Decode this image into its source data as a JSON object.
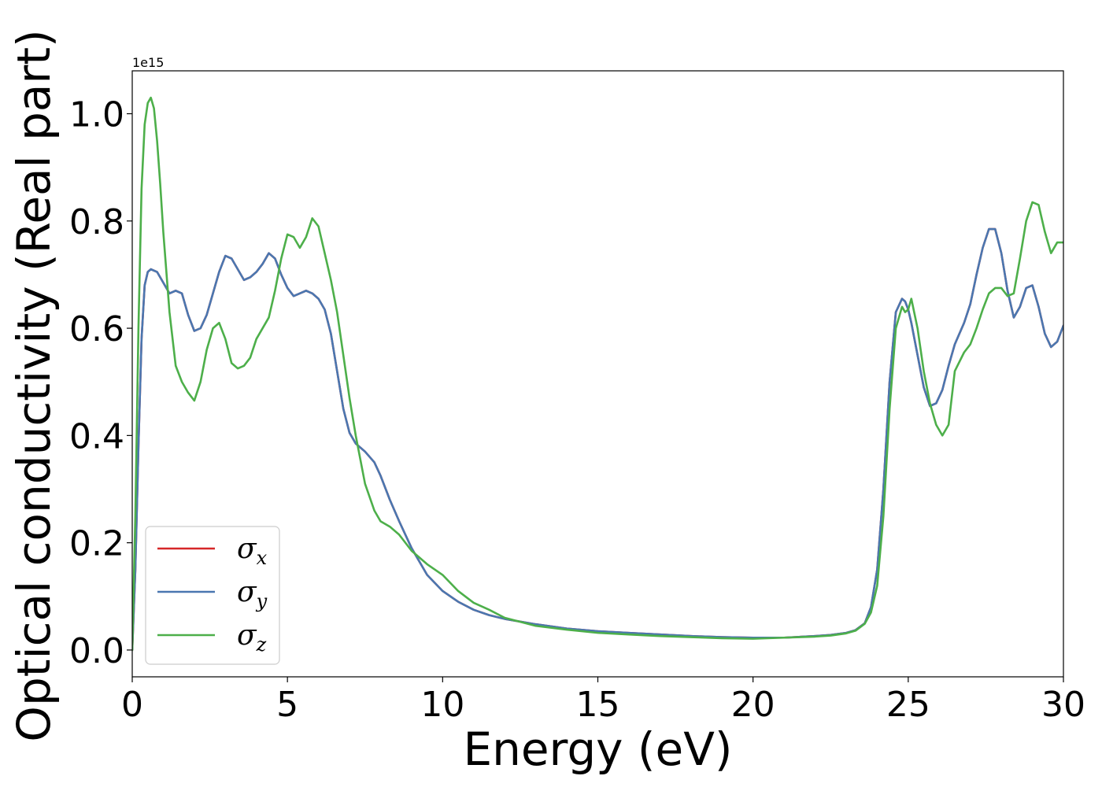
{
  "chart_data": {
    "type": "line",
    "title": "",
    "xlabel": "Energy (eV)",
    "ylabel": "Optical conductivity (Real part)",
    "y_offset_label": "1e15",
    "xlim": [
      0,
      30
    ],
    "ylim": [
      -0.05,
      1.08
    ],
    "x_ticks": [
      0,
      5,
      10,
      15,
      20,
      25,
      30
    ],
    "x_tick_labels": [
      "0",
      "5",
      "10",
      "15",
      "20",
      "25",
      "30"
    ],
    "y_ticks": [
      0.0,
      0.2,
      0.4,
      0.6,
      0.8,
      1.0
    ],
    "y_tick_labels": [
      "0.0",
      "0.2",
      "0.4",
      "0.6",
      "0.8",
      "1.0"
    ],
    "grid": false,
    "legend_position": "lower-left",
    "series": [
      {
        "name": "σx",
        "symbol": "σ",
        "subscript": "x",
        "color": "#d62728",
        "x": [
          0,
          0.1,
          0.2,
          0.3,
          0.4,
          0.5,
          0.6,
          0.8,
          1.0,
          1.2,
          1.4,
          1.6,
          1.8,
          2.0,
          2.2,
          2.4,
          2.6,
          2.8,
          3.0,
          3.2,
          3.4,
          3.6,
          3.8,
          4.0,
          4.2,
          4.4,
          4.6,
          4.8,
          5.0,
          5.2,
          5.4,
          5.6,
          5.8,
          6.0,
          6.2,
          6.4,
          6.6,
          6.8,
          7.0,
          7.2,
          7.5,
          7.8,
          8.0,
          8.3,
          8.6,
          9.0,
          9.5,
          10.0,
          10.5,
          11.0,
          11.5,
          12.0,
          13.0,
          14.0,
          15.0,
          16.0,
          17.0,
          18.0,
          19.0,
          20.0,
          21.0,
          22.0,
          22.5,
          23.0,
          23.3,
          23.6,
          23.8,
          24.0,
          24.2,
          24.4,
          24.6,
          24.8,
          24.9,
          25.0,
          25.1,
          25.3,
          25.5,
          25.7,
          25.9,
          26.1,
          26.3,
          26.5,
          26.8,
          27.0,
          27.2,
          27.4,
          27.6,
          27.8,
          28.0,
          28.2,
          28.4,
          28.6,
          28.8,
          29.0,
          29.2,
          29.4,
          29.6,
          29.8,
          30.0
        ],
        "y": [
          0.0,
          0.15,
          0.38,
          0.58,
          0.68,
          0.705,
          0.71,
          0.705,
          0.685,
          0.665,
          0.67,
          0.665,
          0.625,
          0.595,
          0.6,
          0.625,
          0.665,
          0.705,
          0.735,
          0.73,
          0.71,
          0.69,
          0.695,
          0.705,
          0.72,
          0.74,
          0.73,
          0.7,
          0.675,
          0.66,
          0.665,
          0.67,
          0.665,
          0.655,
          0.635,
          0.59,
          0.52,
          0.45,
          0.405,
          0.385,
          0.37,
          0.35,
          0.325,
          0.28,
          0.24,
          0.19,
          0.14,
          0.11,
          0.09,
          0.075,
          0.065,
          0.058,
          0.048,
          0.04,
          0.035,
          0.032,
          0.029,
          0.026,
          0.024,
          0.023,
          0.023,
          0.026,
          0.028,
          0.032,
          0.037,
          0.05,
          0.08,
          0.15,
          0.3,
          0.5,
          0.63,
          0.655,
          0.65,
          0.635,
          0.61,
          0.55,
          0.49,
          0.455,
          0.46,
          0.485,
          0.53,
          0.57,
          0.61,
          0.645,
          0.7,
          0.75,
          0.785,
          0.785,
          0.74,
          0.67,
          0.62,
          0.64,
          0.675,
          0.68,
          0.64,
          0.59,
          0.565,
          0.575,
          0.605
        ]
      },
      {
        "name": "σy",
        "symbol": "σ",
        "subscript": "y",
        "color": "#4a77b0",
        "x": [
          0,
          0.1,
          0.2,
          0.3,
          0.4,
          0.5,
          0.6,
          0.8,
          1.0,
          1.2,
          1.4,
          1.6,
          1.8,
          2.0,
          2.2,
          2.4,
          2.6,
          2.8,
          3.0,
          3.2,
          3.4,
          3.6,
          3.8,
          4.0,
          4.2,
          4.4,
          4.6,
          4.8,
          5.0,
          5.2,
          5.4,
          5.6,
          5.8,
          6.0,
          6.2,
          6.4,
          6.6,
          6.8,
          7.0,
          7.2,
          7.5,
          7.8,
          8.0,
          8.3,
          8.6,
          9.0,
          9.5,
          10.0,
          10.5,
          11.0,
          11.5,
          12.0,
          13.0,
          14.0,
          15.0,
          16.0,
          17.0,
          18.0,
          19.0,
          20.0,
          21.0,
          22.0,
          22.5,
          23.0,
          23.3,
          23.6,
          23.8,
          24.0,
          24.2,
          24.4,
          24.6,
          24.8,
          24.9,
          25.0,
          25.1,
          25.3,
          25.5,
          25.7,
          25.9,
          26.1,
          26.3,
          26.5,
          26.8,
          27.0,
          27.2,
          27.4,
          27.6,
          27.8,
          28.0,
          28.2,
          28.4,
          28.6,
          28.8,
          29.0,
          29.2,
          29.4,
          29.6,
          29.8,
          30.0
        ],
        "y": [
          0.0,
          0.15,
          0.38,
          0.58,
          0.68,
          0.705,
          0.71,
          0.705,
          0.685,
          0.665,
          0.67,
          0.665,
          0.625,
          0.595,
          0.6,
          0.625,
          0.665,
          0.705,
          0.735,
          0.73,
          0.71,
          0.69,
          0.695,
          0.705,
          0.72,
          0.74,
          0.73,
          0.7,
          0.675,
          0.66,
          0.665,
          0.67,
          0.665,
          0.655,
          0.635,
          0.59,
          0.52,
          0.45,
          0.405,
          0.385,
          0.37,
          0.35,
          0.325,
          0.28,
          0.24,
          0.19,
          0.14,
          0.11,
          0.09,
          0.075,
          0.065,
          0.058,
          0.048,
          0.04,
          0.035,
          0.032,
          0.029,
          0.026,
          0.024,
          0.023,
          0.023,
          0.026,
          0.028,
          0.032,
          0.037,
          0.05,
          0.08,
          0.15,
          0.3,
          0.5,
          0.63,
          0.655,
          0.65,
          0.635,
          0.61,
          0.55,
          0.49,
          0.455,
          0.46,
          0.485,
          0.53,
          0.57,
          0.61,
          0.645,
          0.7,
          0.75,
          0.785,
          0.785,
          0.74,
          0.67,
          0.62,
          0.64,
          0.675,
          0.68,
          0.64,
          0.59,
          0.565,
          0.575,
          0.605
        ]
      },
      {
        "name": "σz",
        "symbol": "σ",
        "subscript": "z",
        "color": "#4daf4a",
        "x": [
          0,
          0.1,
          0.2,
          0.3,
          0.4,
          0.5,
          0.6,
          0.7,
          0.8,
          0.9,
          1.0,
          1.2,
          1.4,
          1.6,
          1.8,
          2.0,
          2.2,
          2.4,
          2.6,
          2.8,
          3.0,
          3.2,
          3.4,
          3.6,
          3.8,
          4.0,
          4.2,
          4.4,
          4.6,
          4.8,
          5.0,
          5.2,
          5.4,
          5.6,
          5.8,
          6.0,
          6.2,
          6.4,
          6.6,
          6.8,
          7.0,
          7.2,
          7.5,
          7.8,
          8.0,
          8.3,
          8.6,
          9.0,
          9.5,
          10.0,
          10.5,
          11.0,
          11.5,
          12.0,
          13.0,
          14.0,
          15.0,
          16.0,
          17.0,
          18.0,
          19.0,
          20.0,
          21.0,
          22.0,
          22.5,
          23.0,
          23.3,
          23.6,
          23.8,
          24.0,
          24.2,
          24.4,
          24.6,
          24.8,
          24.9,
          25.0,
          25.1,
          25.3,
          25.5,
          25.7,
          25.9,
          26.1,
          26.3,
          26.5,
          26.8,
          27.0,
          27.2,
          27.4,
          27.6,
          27.8,
          28.0,
          28.2,
          28.4,
          28.6,
          28.8,
          29.0,
          29.2,
          29.4,
          29.6,
          29.8,
          30.0
        ],
        "y": [
          0.0,
          0.25,
          0.6,
          0.86,
          0.98,
          1.02,
          1.03,
          1.01,
          0.95,
          0.87,
          0.78,
          0.63,
          0.53,
          0.5,
          0.48,
          0.465,
          0.5,
          0.56,
          0.6,
          0.61,
          0.58,
          0.535,
          0.525,
          0.53,
          0.545,
          0.58,
          0.6,
          0.62,
          0.67,
          0.73,
          0.775,
          0.77,
          0.75,
          0.77,
          0.805,
          0.79,
          0.74,
          0.69,
          0.63,
          0.55,
          0.47,
          0.4,
          0.31,
          0.26,
          0.24,
          0.23,
          0.215,
          0.185,
          0.16,
          0.14,
          0.11,
          0.088,
          0.075,
          0.06,
          0.045,
          0.038,
          0.032,
          0.029,
          0.026,
          0.024,
          0.022,
          0.021,
          0.023,
          0.025,
          0.027,
          0.031,
          0.036,
          0.049,
          0.07,
          0.12,
          0.25,
          0.45,
          0.6,
          0.64,
          0.63,
          0.635,
          0.655,
          0.6,
          0.52,
          0.46,
          0.42,
          0.4,
          0.42,
          0.52,
          0.555,
          0.57,
          0.6,
          0.635,
          0.665,
          0.675,
          0.675,
          0.66,
          0.665,
          0.73,
          0.8,
          0.835,
          0.83,
          0.78,
          0.74,
          0.76,
          0.76
        ]
      }
    ]
  }
}
